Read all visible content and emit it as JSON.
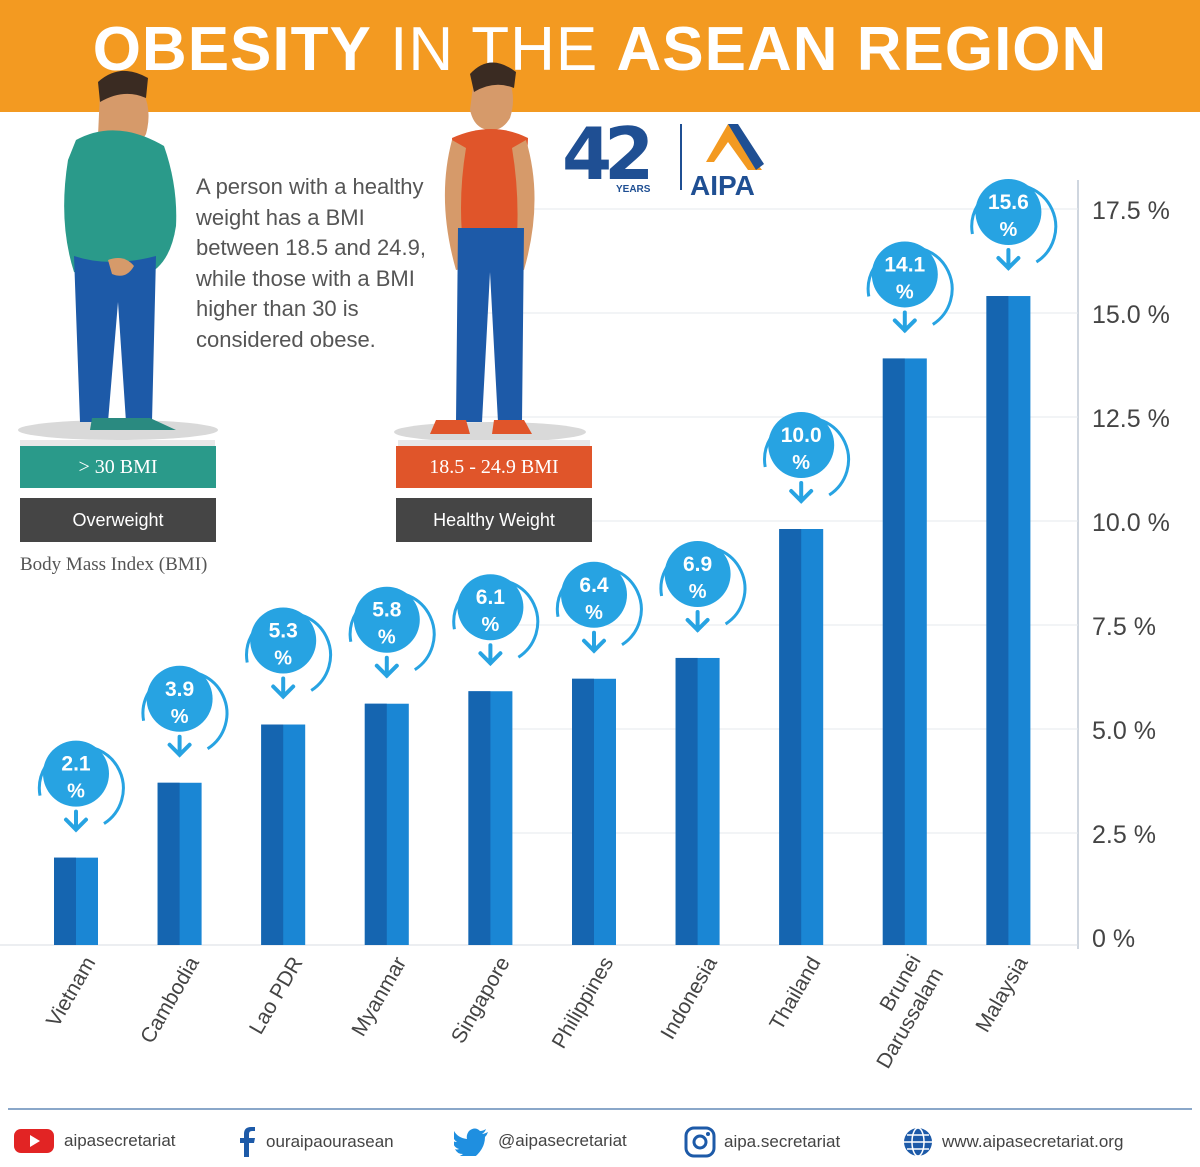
{
  "header": {
    "title_bold_1": "OBESITY",
    "title_light": "IN THE",
    "title_bold_2": "ASEAN REGION"
  },
  "logo": {
    "number": "42",
    "years": "YEARS",
    "name": "AIPA"
  },
  "note": "A person with a healthy weight has a BMI between 18.5 and 24.9, while those with a BMI higher than 30 is considered obese.",
  "overweight": {
    "bmi": "> 30 BMI",
    "label": "Overweight",
    "bmi_color": "#2a9a8a",
    "shirt_color": "#2a9a8a"
  },
  "healthy": {
    "bmi": "18.5 - 24.9 BMI",
    "label": "Healthy Weight",
    "bmi_color": "#e0552a",
    "shirt_color": "#e0552a"
  },
  "bmi_caption": "Body Mass Index (BMI)",
  "chart_data": {
    "type": "bar",
    "categories": [
      "Vietnam",
      "Cambodia",
      "Lao PDR",
      "Myanmar",
      "Singapore",
      "Philippines",
      "Indonesia",
      "Thailand",
      "Brunei Darussalam",
      "Malaysia"
    ],
    "values": [
      2.1,
      3.9,
      5.3,
      5.8,
      6.1,
      6.4,
      6.9,
      10.0,
      14.1,
      15.6
    ],
    "value_labels": [
      "2.1",
      "3.9",
      "5.3",
      "5.8",
      "6.1",
      "6.4",
      "6.9",
      "10.0",
      "14.1",
      "15.6"
    ],
    "value_unit": "%",
    "y_ticks": [
      "0 %",
      "2.5 %",
      "5.0 %",
      "7.5 %",
      "10.0 %",
      "12.5 %",
      "15.0 %",
      "17.5 %"
    ],
    "y_tick_values": [
      0,
      2.5,
      5.0,
      7.5,
      10.0,
      12.5,
      15.0,
      17.5
    ],
    "ylim": [
      0,
      17.5
    ],
    "y_axis_side": "right",
    "grid": true,
    "bar_color": "#1a86d4",
    "bar_dark_color": "#1565b0",
    "badge_color": "#27a3e2"
  },
  "footer": {
    "youtube": "aipasecretariat",
    "facebook": "ouraipaourasean",
    "twitter": "@aipasecretariat",
    "instagram": "aipa.secretariat",
    "website": "www.aipasecretariat.org"
  }
}
